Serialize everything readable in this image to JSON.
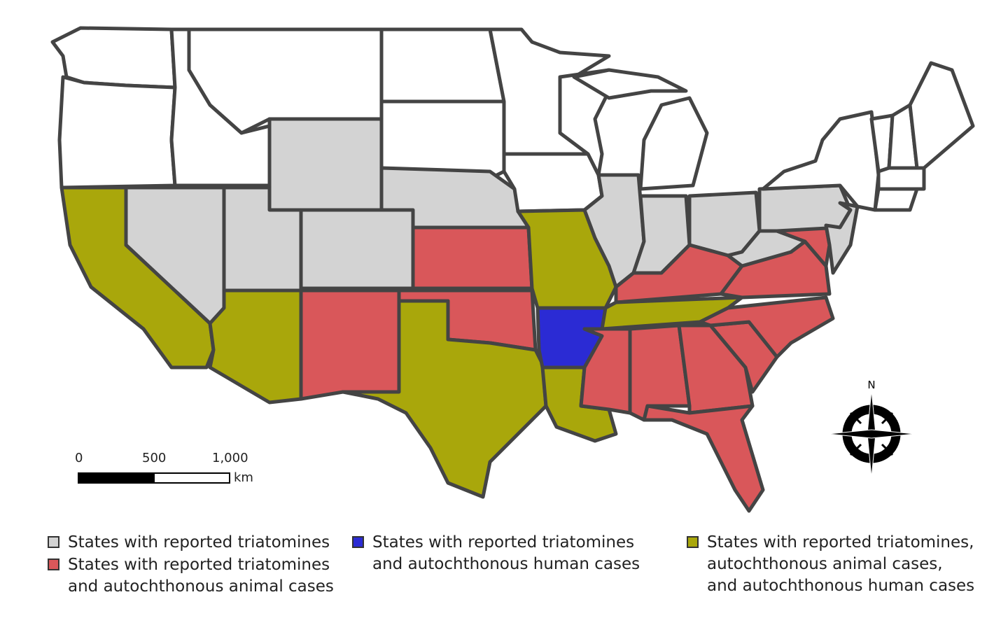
{
  "map": {
    "stroke_color": "#444444",
    "default_fill": "#ffffff",
    "categories": [
      {
        "id": "triatomines",
        "color": "#d3d3d3",
        "label": "States with reported triatomines",
        "states": [
          "WY",
          "NV",
          "UT",
          "CO",
          "NE",
          "IL",
          "IN",
          "OH",
          "WV",
          "PA",
          "NJ"
        ]
      },
      {
        "id": "animal",
        "color": "#d9575a",
        "label": "States with reported triatomines\nand autochthonous animal cases",
        "states": [
          "NM",
          "KS",
          "OK",
          "KY",
          "MS",
          "AL",
          "GA",
          "FL",
          "SC",
          "NC",
          "VA",
          "MD"
        ]
      },
      {
        "id": "human",
        "color": "#2b2bd4",
        "label": "States with reported triatomines\nand autochthonous human cases",
        "states": [
          "AR"
        ]
      },
      {
        "id": "both",
        "color": "#a9a70b",
        "label": "States with reported triatomines,\nautochthonous animal cases,\nand autochthonous human cases",
        "states": [
          "CA",
          "AZ",
          "TX",
          "MO",
          "LA",
          "TN"
        ]
      }
    ]
  },
  "scale_bar": {
    "ticks": [
      "0",
      "500",
      "1,000"
    ],
    "unit": "km"
  },
  "compass": {
    "label": "N",
    "icon": "compass-rose-icon"
  }
}
